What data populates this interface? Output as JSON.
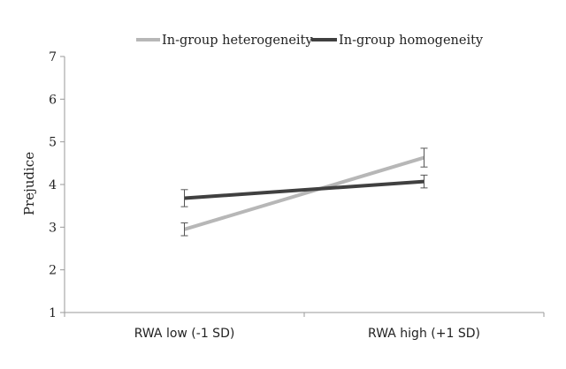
{
  "chart_data": {
    "type": "line",
    "title": "",
    "xlabel": "",
    "ylabel": "Prejudice",
    "categories": [
      "RWA low (-1 SD)",
      "RWA high (+1 SD)"
    ],
    "ylim": [
      1,
      7
    ],
    "yticks": [
      1,
      2,
      3,
      4,
      5,
      6,
      7
    ],
    "grid": false,
    "legend_position": "top",
    "series": [
      {
        "name": "In-group heterogeneity",
        "values": [
          2.95,
          4.63
        ],
        "error": [
          0.15,
          0.22
        ],
        "color": "#b7b7b7"
      },
      {
        "name": "In-group homogeneity",
        "values": [
          3.68,
          4.07
        ],
        "error": [
          0.2,
          0.15
        ],
        "color": "#404040"
      }
    ]
  }
}
